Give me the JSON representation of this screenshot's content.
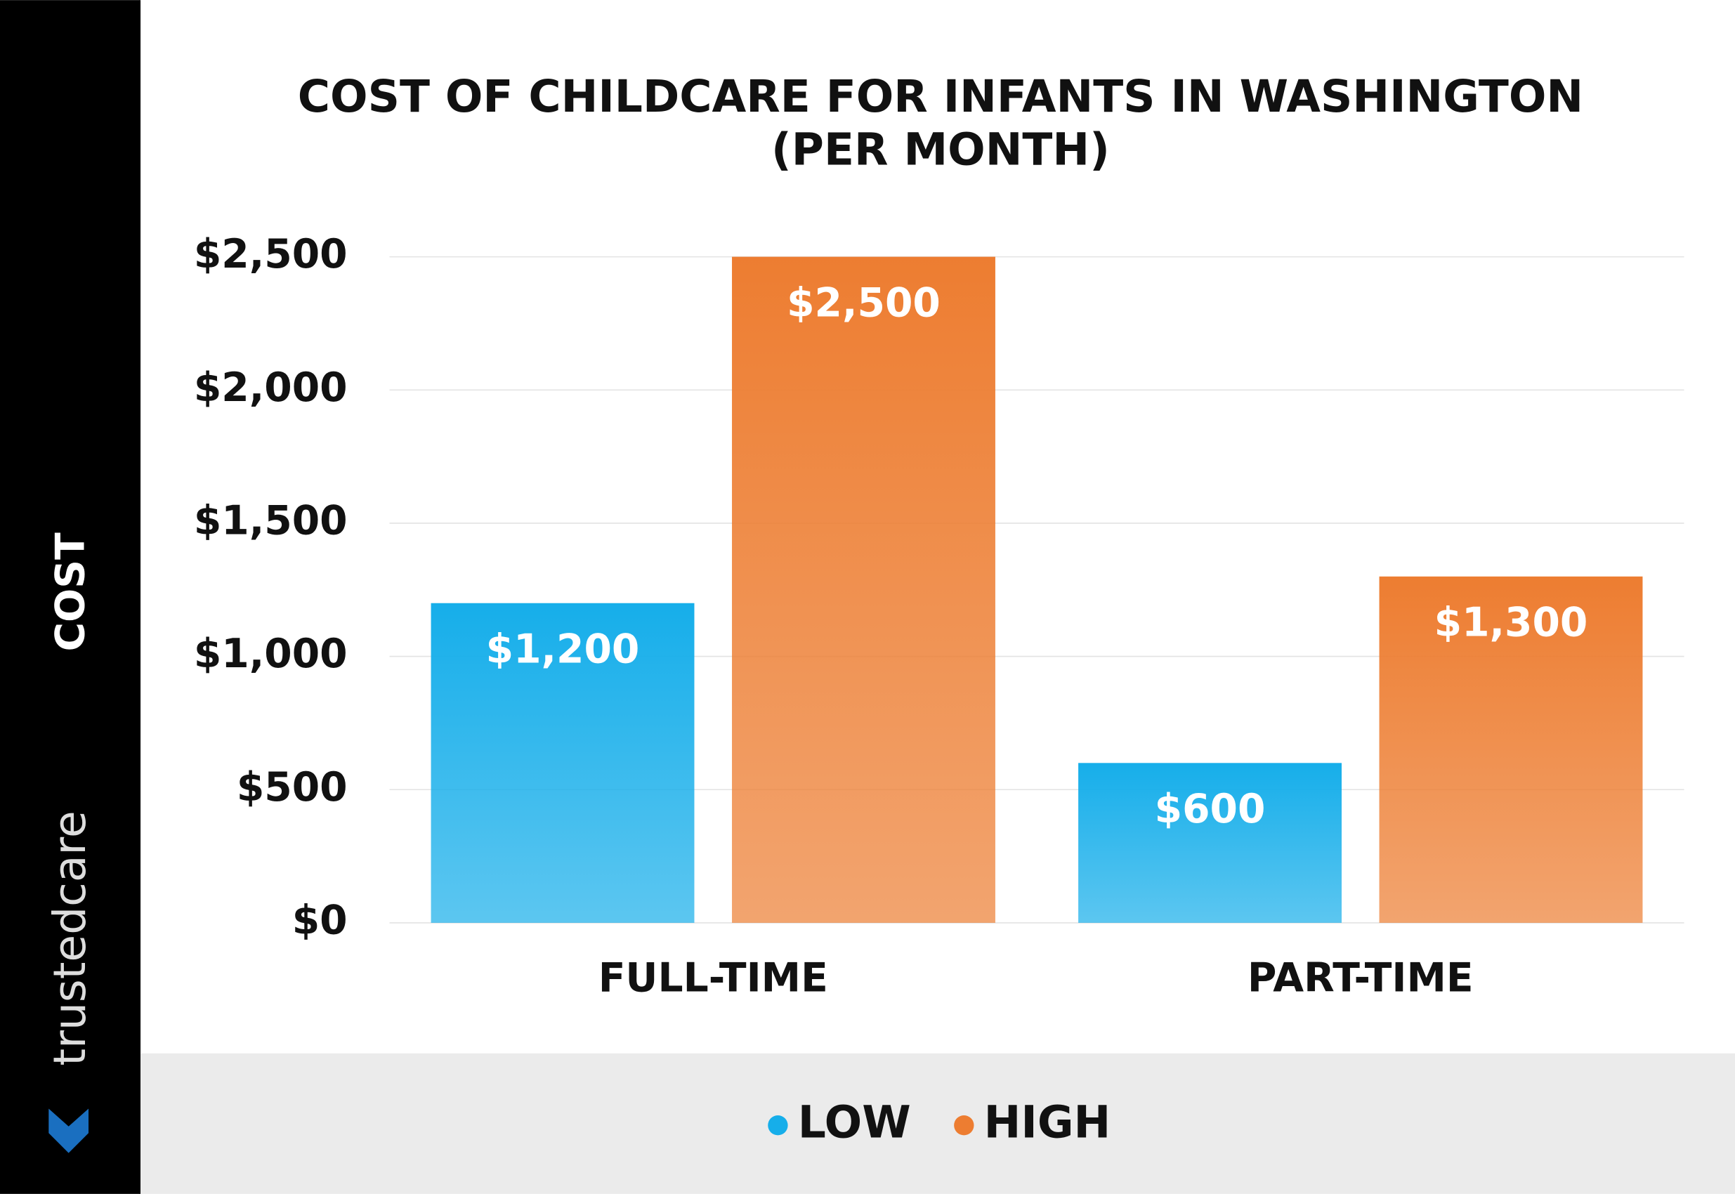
{
  "chart_data": {
    "type": "bar",
    "title": "COST OF CHILDCARE FOR INFANTS IN WASHINGTON",
    "subtitle": "(PER MONTH)",
    "y_label": "COST",
    "brand": "trustedcare",
    "categories": [
      "FULL-TIME",
      "PART-TIME"
    ],
    "series": [
      {
        "name": "LOW",
        "color": "#16aeea",
        "values": [
          1200,
          600
        ],
        "value_labels": [
          "$1,200",
          "$600"
        ]
      },
      {
        "name": "HIGH",
        "color": "#ed7d31",
        "values": [
          2500,
          1300
        ],
        "value_labels": [
          "$2,500",
          "$1,300"
        ]
      }
    ],
    "ylim": [
      0,
      2500
    ],
    "yticks": [
      {
        "value": 0,
        "label": "$0"
      },
      {
        "value": 500,
        "label": "$500"
      },
      {
        "value": 1000,
        "label": "$1,000"
      },
      {
        "value": 1500,
        "label": "$1,500"
      },
      {
        "value": 2000,
        "label": "$2,000"
      },
      {
        "value": 2500,
        "label": "$2,500"
      }
    ],
    "grid": true
  }
}
